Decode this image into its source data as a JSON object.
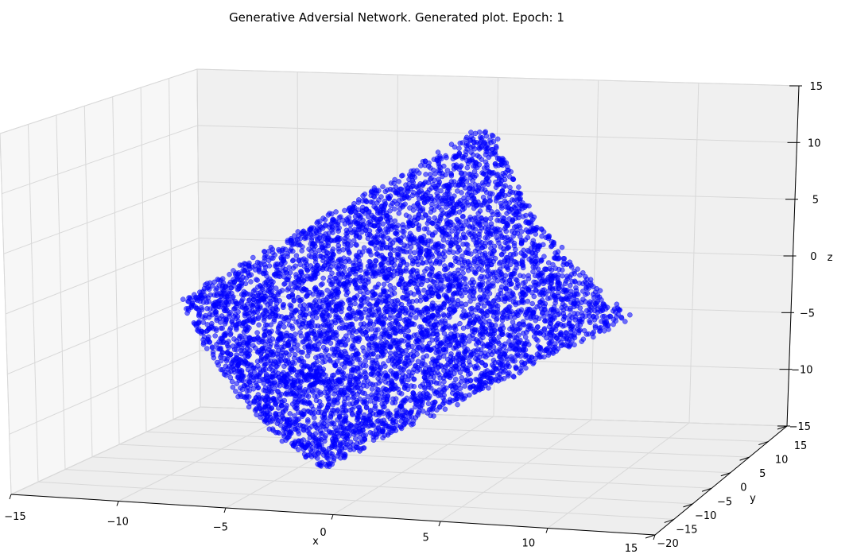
{
  "chart_data": {
    "type": "scatter",
    "projection": "3d",
    "title": "Generative Adversial Network. Generated plot. Epoch: 1",
    "xlabel": "x",
    "ylabel": "y",
    "zlabel": "z",
    "xlim": [
      -15,
      15
    ],
    "ylim": [
      -20,
      15
    ],
    "zlim": [
      -15,
      15
    ],
    "x_ticks": [
      "−15",
      "−10",
      "−5",
      "0",
      "5",
      "10",
      "15"
    ],
    "y_ticks": [
      "−20",
      "−15",
      "−10",
      "−5",
      "0",
      "5",
      "10",
      "15"
    ],
    "z_ticks": [
      "−15",
      "−10",
      "−5",
      "0",
      "5",
      "10",
      "15"
    ],
    "grid": true,
    "series": [
      {
        "marker_color": "#0000ff",
        "point_count": 6000,
        "shape": "swiss-roll-like curved sheet",
        "x_range": [
          -12,
          12
        ],
        "z_range": [
          -14,
          14
        ]
      }
    ]
  }
}
